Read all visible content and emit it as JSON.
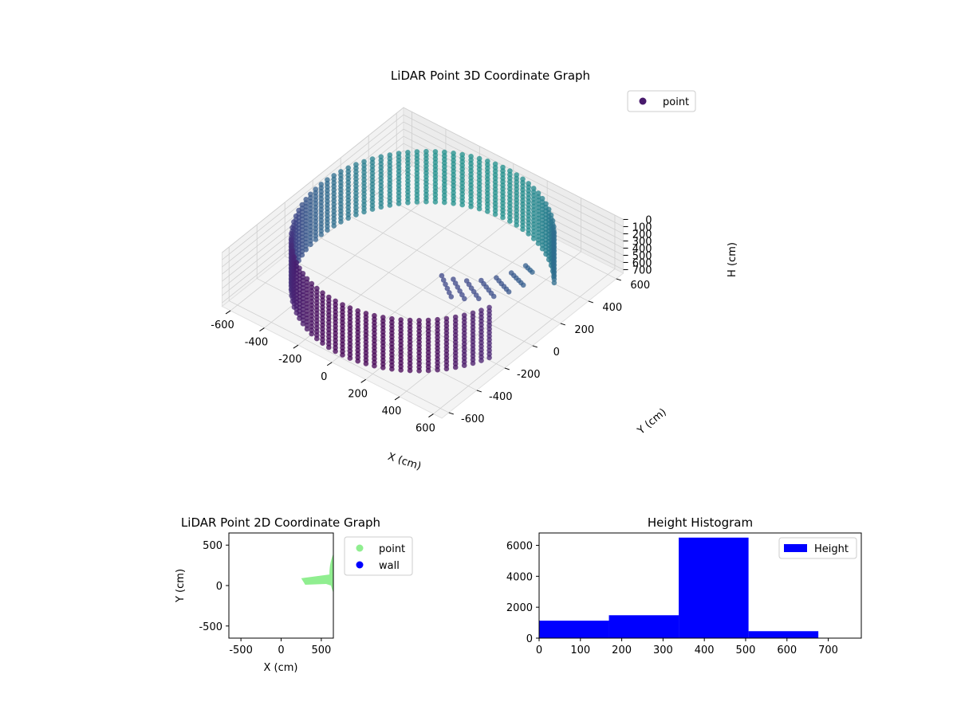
{
  "figure": {
    "background": "#ffffff"
  },
  "chart_data": [
    {
      "type": "scatter",
      "projection": "3d",
      "title": "LiDAR Point 3D Coordinate Graph",
      "xlabel": "X (cm)",
      "ylabel": "Y (cm)",
      "zlabel": "H (cm)",
      "xlim": [
        -650,
        650
      ],
      "ylim": [
        -650,
        650
      ],
      "zlim": [
        0,
        750
      ],
      "z_inverted": true,
      "xticks": [
        -600,
        -400,
        -200,
        0,
        200,
        400,
        600
      ],
      "yticks": [
        600,
        400,
        200,
        0,
        -200,
        -400,
        -600
      ],
      "zticks": [
        0,
        100,
        200,
        300,
        400,
        500,
        600,
        700
      ],
      "legend": {
        "position": "top-right",
        "entries": [
          {
            "label": "point",
            "color": "#481a6c"
          }
        ]
      },
      "colormap": "viridis",
      "shape": {
        "wall_radius": 600,
        "wall_heights": [
          0,
          750
        ],
        "gap_angle_start_deg": -20,
        "gap_angle_end_deg": 40
      },
      "grid": true
    },
    {
      "type": "scatter",
      "title": "LiDAR Point 2D Coordinate Graph",
      "xlabel": "X (cm)",
      "ylabel": "Y (cm)",
      "xlim": [
        -650,
        650
      ],
      "ylim": [
        -650,
        650
      ],
      "xticks": [
        -500,
        0,
        500
      ],
      "yticks": [
        500,
        0,
        -500
      ],
      "legend": {
        "position": "right",
        "entries": [
          {
            "label": "point",
            "color": "#90ee90"
          },
          {
            "label": "wall",
            "color": "#0000ff"
          }
        ]
      },
      "series": [
        {
          "name": "point",
          "color": "#90ee90",
          "disc_radius": 620
        },
        {
          "name": "wall",
          "color": "#0000ff"
        }
      ],
      "grid": false
    },
    {
      "type": "bar",
      "title": "Height Histogram",
      "xlabel": "",
      "ylabel": "",
      "xlim": [
        0,
        780
      ],
      "ylim": [
        0,
        6800
      ],
      "xticks": [
        0,
        100,
        200,
        300,
        400,
        500,
        600,
        700
      ],
      "yticks": [
        0,
        2000,
        4000,
        6000
      ],
      "bar_color": "#0000ff",
      "legend": {
        "position": "top-right",
        "entries": [
          {
            "label": "Height",
            "color": "#0000ff"
          }
        ]
      },
      "bins": [
        {
          "x0": 0,
          "x1": 169,
          "value": 1130
        },
        {
          "x0": 169,
          "x1": 338,
          "value": 1480
        },
        {
          "x0": 338,
          "x1": 507,
          "value": 6500
        },
        {
          "x0": 507,
          "x1": 676,
          "value": 450
        }
      ],
      "grid": false
    }
  ]
}
